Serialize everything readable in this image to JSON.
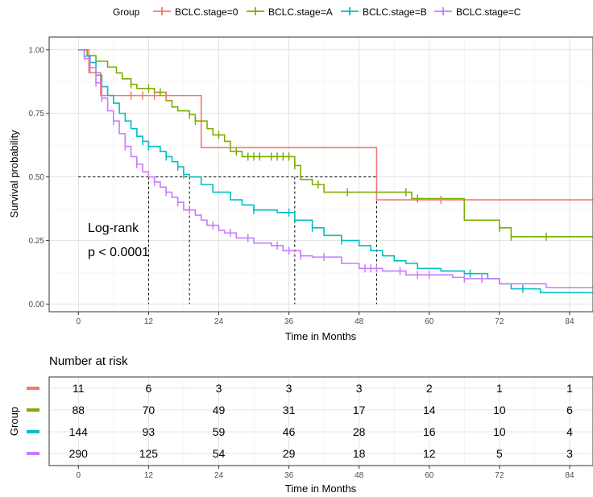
{
  "legend": {
    "title": "Group",
    "groups": [
      {
        "label": "BCLC.stage=0",
        "color": "#F8766D"
      },
      {
        "label": "BCLC.stage=A",
        "color": "#7CAE00"
      },
      {
        "label": "BCLC.stage=B",
        "color": "#00BFC4"
      },
      {
        "label": "BCLC.stage=C",
        "color": "#C77CFF"
      }
    ]
  },
  "annotation": {
    "line1": "Log-rank",
    "line2": "p < 0.0001"
  },
  "chart_data": {
    "type": "line",
    "subtype": "kaplan-meier step curves",
    "xlabel": "Time in Months",
    "ylabel": "Survival probability",
    "xlim": [
      -5,
      88
    ],
    "ylim": [
      -0.03,
      1.05
    ],
    "x_ticks": [
      0,
      12,
      24,
      36,
      48,
      60,
      72,
      84
    ],
    "y_ticks": [
      0.0,
      0.25,
      0.5,
      0.75,
      1.0
    ],
    "y_tick_labels": [
      "0.00",
      "0.25",
      "0.50",
      "0.75",
      "1.00"
    ],
    "grid": true,
    "legend_position": "top",
    "median_survival_line": {
      "y": 0.5,
      "x_medians": [
        12,
        19,
        37,
        51
      ]
    },
    "series": [
      {
        "name": "BCLC.stage=0",
        "color": "#F8766D",
        "steps": [
          [
            0,
            1.0
          ],
          [
            1.8,
            0.91
          ],
          [
            3.8,
            0.82
          ],
          [
            21,
            0.82
          ],
          [
            21,
            0.615
          ],
          [
            51,
            0.615
          ],
          [
            51,
            0.41
          ],
          [
            88,
            0.41
          ]
        ],
        "censor_times": [
          9,
          11,
          13,
          15,
          62
        ]
      },
      {
        "name": "BCLC.stage=A",
        "color": "#7CAE00",
        "steps": [
          [
            0,
            1.0
          ],
          [
            1.5,
            0.977
          ],
          [
            3,
            0.955
          ],
          [
            5,
            0.932
          ],
          [
            6.5,
            0.909
          ],
          [
            7.5,
            0.886
          ],
          [
            9,
            0.864
          ],
          [
            10,
            0.848
          ],
          [
            13,
            0.833
          ],
          [
            15,
            0.8
          ],
          [
            16,
            0.775
          ],
          [
            17,
            0.76
          ],
          [
            19,
            0.745
          ],
          [
            20,
            0.72
          ],
          [
            22,
            0.69
          ],
          [
            23,
            0.665
          ],
          [
            25,
            0.64
          ],
          [
            26,
            0.6
          ],
          [
            28,
            0.58
          ],
          [
            37,
            0.545
          ],
          [
            38,
            0.49
          ],
          [
            40,
            0.47
          ],
          [
            42,
            0.44
          ],
          [
            57,
            0.415
          ],
          [
            66,
            0.33
          ],
          [
            72,
            0.3
          ],
          [
            74,
            0.265
          ],
          [
            88,
            0.265
          ]
        ],
        "censor_times": [
          9,
          12,
          14,
          19,
          20,
          24,
          27,
          29,
          30,
          31,
          33,
          34,
          35,
          36,
          37,
          41,
          46,
          56,
          58,
          72,
          74,
          80
        ]
      },
      {
        "name": "BCLC.stage=B",
        "color": "#00BFC4",
        "steps": [
          [
            0,
            1.0
          ],
          [
            1,
            0.975
          ],
          [
            2,
            0.95
          ],
          [
            3,
            0.9
          ],
          [
            4,
            0.855
          ],
          [
            5,
            0.82
          ],
          [
            6,
            0.79
          ],
          [
            7,
            0.75
          ],
          [
            8,
            0.72
          ],
          [
            9,
            0.69
          ],
          [
            10,
            0.66
          ],
          [
            11,
            0.64
          ],
          [
            12,
            0.62
          ],
          [
            14,
            0.6
          ],
          [
            15,
            0.58
          ],
          [
            16,
            0.56
          ],
          [
            17,
            0.54
          ],
          [
            18,
            0.51
          ],
          [
            19,
            0.5
          ],
          [
            21,
            0.47
          ],
          [
            23,
            0.44
          ],
          [
            26,
            0.41
          ],
          [
            28,
            0.39
          ],
          [
            30,
            0.37
          ],
          [
            34,
            0.36
          ],
          [
            37,
            0.33
          ],
          [
            40,
            0.3
          ],
          [
            42,
            0.27
          ],
          [
            45,
            0.25
          ],
          [
            48,
            0.23
          ],
          [
            50,
            0.21
          ],
          [
            52,
            0.19
          ],
          [
            54,
            0.17
          ],
          [
            56,
            0.16
          ],
          [
            58,
            0.14
          ],
          [
            62,
            0.13
          ],
          [
            66,
            0.12
          ],
          [
            70,
            0.1
          ],
          [
            72,
            0.08
          ],
          [
            74,
            0.06
          ],
          [
            79,
            0.06
          ],
          [
            79,
            0.045
          ],
          [
            88,
            0.045
          ]
        ],
        "censor_times": [
          11,
          12,
          15,
          17,
          18,
          30,
          36,
          40,
          45,
          67,
          76
        ]
      },
      {
        "name": "BCLC.stage=C",
        "color": "#C77CFF",
        "steps": [
          [
            0,
            1.0
          ],
          [
            1,
            0.965
          ],
          [
            2,
            0.93
          ],
          [
            3,
            0.87
          ],
          [
            4,
            0.81
          ],
          [
            5,
            0.76
          ],
          [
            6,
            0.72
          ],
          [
            7,
            0.67
          ],
          [
            8,
            0.62
          ],
          [
            9,
            0.58
          ],
          [
            10,
            0.55
          ],
          [
            11,
            0.52
          ],
          [
            12,
            0.5
          ],
          [
            13,
            0.48
          ],
          [
            14,
            0.46
          ],
          [
            15,
            0.44
          ],
          [
            16,
            0.42
          ],
          [
            17,
            0.4
          ],
          [
            18,
            0.37
          ],
          [
            20,
            0.35
          ],
          [
            21,
            0.33
          ],
          [
            22,
            0.31
          ],
          [
            24,
            0.29
          ],
          [
            25,
            0.28
          ],
          [
            27,
            0.26
          ],
          [
            30,
            0.24
          ],
          [
            33,
            0.23
          ],
          [
            35,
            0.21
          ],
          [
            38,
            0.19
          ],
          [
            40,
            0.185
          ],
          [
            45,
            0.16
          ],
          [
            48,
            0.14
          ],
          [
            52,
            0.13
          ],
          [
            56,
            0.115
          ],
          [
            64,
            0.105
          ],
          [
            66,
            0.1
          ],
          [
            72,
            0.08
          ],
          [
            80,
            0.065
          ],
          [
            88,
            0.065
          ]
        ],
        "censor_times": [
          2,
          3,
          4,
          6,
          8,
          10,
          13,
          15,
          17,
          19,
          23,
          26,
          29,
          34,
          36,
          38,
          42,
          49,
          50,
          51,
          55,
          58,
          60,
          66,
          69
        ]
      }
    ]
  },
  "risk_table": {
    "title": "Number at risk",
    "ylabel": "Group",
    "xlabel": "Time in Months",
    "times": [
      0,
      12,
      24,
      36,
      48,
      60,
      72,
      84
    ],
    "rows": [
      {
        "color": "#F8766D",
        "values": [
          "11",
          "6",
          "3",
          "3",
          "3",
          "2",
          "1",
          "1"
        ]
      },
      {
        "color": "#7CAE00",
        "values": [
          "88",
          "70",
          "49",
          "31",
          "17",
          "14",
          "10",
          "6"
        ]
      },
      {
        "color": "#00BFC4",
        "values": [
          "144",
          "93",
          "59",
          "46",
          "28",
          "16",
          "10",
          "4"
        ]
      },
      {
        "color": "#C77CFF",
        "values": [
          "290",
          "125",
          "54",
          "29",
          "18",
          "12",
          "5",
          "3"
        ]
      }
    ]
  }
}
